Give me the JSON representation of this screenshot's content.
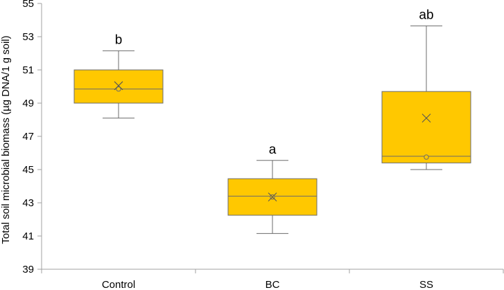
{
  "chart_data": {
    "type": "box",
    "title": "",
    "xlabel": "",
    "ylabel": "Total soil microbial biomass (µg DNA/1 g soil)",
    "ylim": [
      39,
      55
    ],
    "yticks": [
      "39",
      "41",
      "43",
      "45",
      "47",
      "49",
      "51",
      "53",
      "55"
    ],
    "grid": false,
    "box_color": "#FFC800",
    "box_edge_color": "#6b6b6b",
    "categories": [
      "Control",
      "BC",
      "SS"
    ],
    "boxes": [
      {
        "label": "Control",
        "min": 48.1,
        "q1": 49.0,
        "median": 49.85,
        "q3": 51.0,
        "max": 52.15,
        "mean": 50.05,
        "outlier_marker": 49.85,
        "significance": "b"
      },
      {
        "label": "BC",
        "min": 41.15,
        "q1": 42.25,
        "median": 43.4,
        "q3": 44.45,
        "max": 45.55,
        "mean": 43.35,
        "outlier_marker": 43.35,
        "significance": "a"
      },
      {
        "label": "SS",
        "min": 45.0,
        "q1": 45.4,
        "median": 45.8,
        "q3": 49.7,
        "max": 53.65,
        "mean": 48.1,
        "outlier_marker": 45.75,
        "significance": "ab"
      }
    ]
  }
}
